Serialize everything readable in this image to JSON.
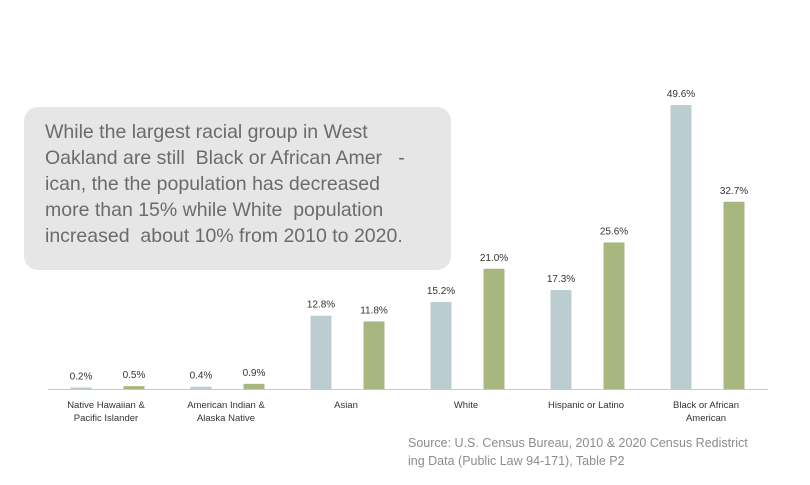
{
  "callout": {
    "lines": [
      "While the largest racial group in West",
      "Oakland are still  Black or African Amer   -",
      "ican, the the population has decreased",
      "more than 15% while White  population",
      "increased  about 10% from 2010 to 2020."
    ]
  },
  "source": {
    "lines": [
      "Source: U.S. Census Bureau, 2010 & 2020 Census Redistrict",
      "ing Data (Public Law 94-171), Table P2"
    ]
  },
  "colors": {
    "series_2010": "#bccdd2",
    "series_2020": "#a8b77f",
    "axis": "#c8c8c8",
    "label_text": "#333333"
  },
  "chart_data": {
    "type": "bar",
    "categories": [
      [
        "Native Hawaiian &",
        "Pacific Islander"
      ],
      [
        "American Indian &",
        "Alaska Native"
      ],
      [
        "Asian"
      ],
      [
        "White"
      ],
      [
        "Hispanic or Latino"
      ],
      [
        "Black or African",
        "American"
      ]
    ],
    "series": [
      {
        "values": [
          0.2,
          0.4,
          12.8,
          15.2,
          17.3,
          49.6
        ],
        "labels": [
          "0.2%",
          "0.4%",
          "12.8%",
          "15.2%",
          "17.3%",
          "49.6%"
        ],
        "color": "#bccdd2"
      },
      {
        "values": [
          0.5,
          0.9,
          11.8,
          21.0,
          25.6,
          32.7
        ],
        "labels": [
          "0.5%",
          "0.9%",
          "11.8%",
          "21.0%",
          "25.6%",
          "32.7%"
        ],
        "color": "#a8b77f"
      }
    ],
    "title": "",
    "xlabel": "",
    "ylabel": "",
    "ylim": [
      0,
      49.6
    ],
    "grid": false,
    "legend": "none"
  }
}
